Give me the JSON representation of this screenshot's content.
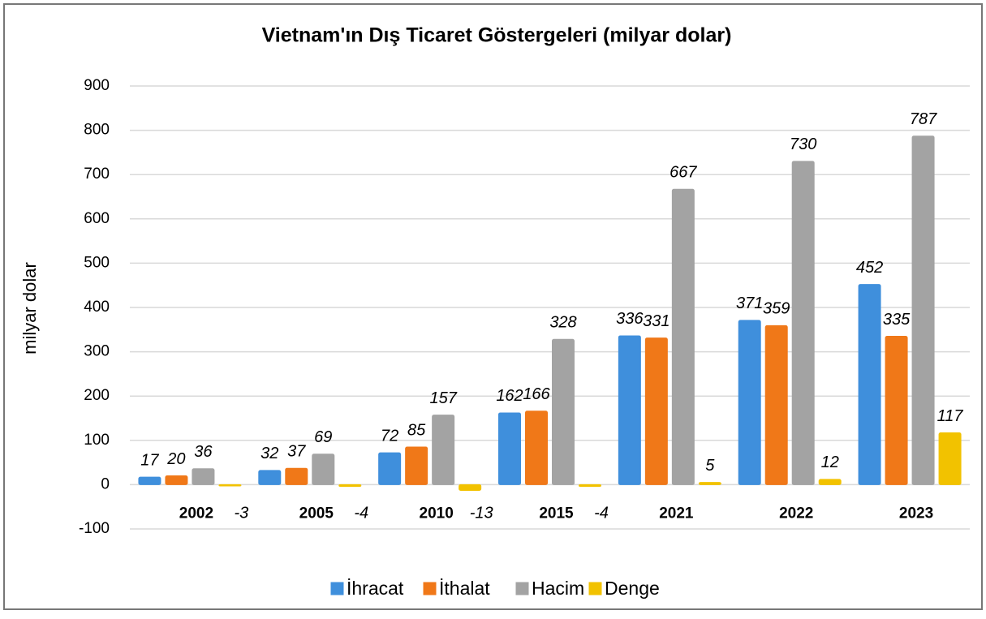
{
  "chart_data": {
    "type": "bar",
    "title": "Vietnam'ın Dış Ticaret Göstergeleri  (milyar dolar)",
    "y_label": "milyar dolar",
    "categories": [
      "2002",
      "2005",
      "2010",
      "2015",
      "2021",
      "2022",
      "2023"
    ],
    "series": [
      {
        "name": "İhracat",
        "color": "#3f8fdc",
        "values": [
          17,
          32,
          72,
          162,
          336,
          371,
          452
        ]
      },
      {
        "name": "İthalat",
        "color": "#f07818",
        "values": [
          20,
          37,
          85,
          166,
          331,
          359,
          335
        ]
      },
      {
        "name": "Hacim",
        "color": "#a3a3a3",
        "values": [
          36,
          69,
          157,
          328,
          667,
          730,
          787
        ]
      },
      {
        "name": "Denge",
        "color": "#f2c200",
        "values": [
          -3,
          -4,
          -13,
          -4,
          5,
          12,
          117
        ]
      }
    ],
    "ylim": [
      -100,
      900
    ],
    "yticks": [
      -100,
      0,
      100,
      200,
      300,
      400,
      500,
      600,
      700,
      800,
      900
    ],
    "grid": true,
    "legend": "bottom"
  }
}
